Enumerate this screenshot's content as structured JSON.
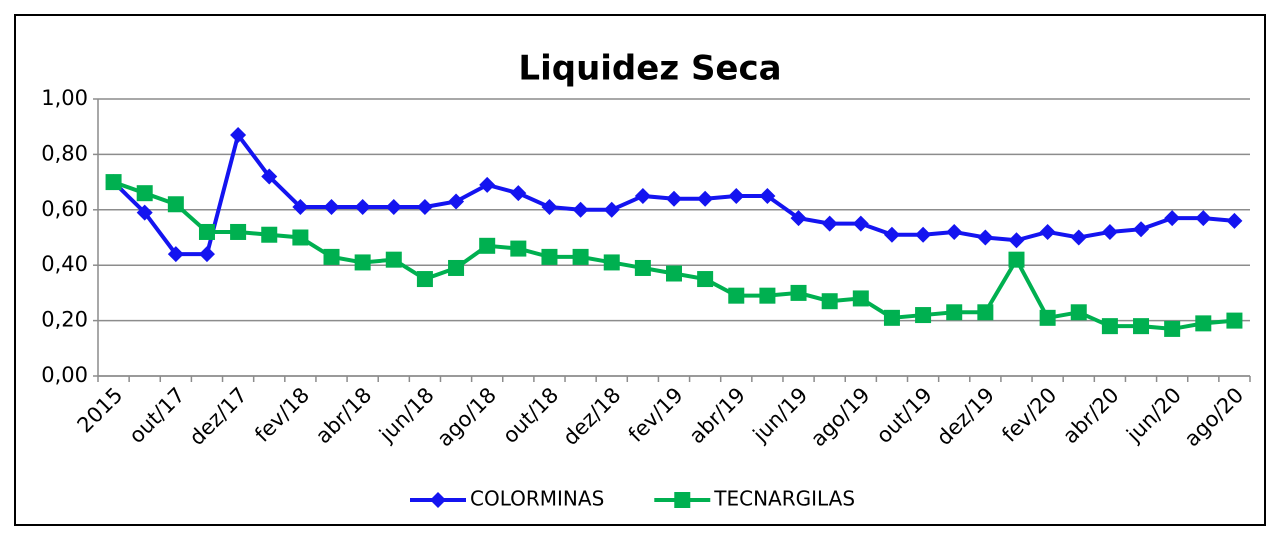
{
  "chart_data": {
    "type": "line",
    "title": "Liquidez Seca",
    "categories": [
      "2015",
      null,
      "out/17",
      null,
      "dez/17",
      null,
      "fev/18",
      null,
      "abr/18",
      null,
      "jun/18",
      null,
      "ago/18",
      null,
      "out/18",
      null,
      "dez/18",
      null,
      "fev/19",
      null,
      "abr/19",
      null,
      "jun/19",
      null,
      "ago/19",
      null,
      "out/19",
      null,
      "dez/19",
      null,
      "fev/20",
      null,
      "abr/20",
      null,
      "jun/20",
      null,
      "ago/20"
    ],
    "series": [
      {
        "name": "COLORMINAS",
        "color": "#1414f0",
        "marker": "diamond",
        "values": [
          0.7,
          0.59,
          0.44,
          0.44,
          0.87,
          0.72,
          0.61,
          0.61,
          0.61,
          0.61,
          0.61,
          0.63,
          0.69,
          0.66,
          0.61,
          0.6,
          0.6,
          0.65,
          0.64,
          0.64,
          0.65,
          0.65,
          0.57,
          0.55,
          0.55,
          0.51,
          0.51,
          0.52,
          0.5,
          0.49,
          0.52,
          0.5,
          0.52,
          0.53,
          0.57,
          0.57,
          0.56
        ]
      },
      {
        "name": "TECNARGILAS",
        "color": "#00b050",
        "marker": "square",
        "values": [
          0.7,
          0.66,
          0.62,
          0.52,
          0.52,
          0.51,
          0.5,
          0.43,
          0.41,
          0.42,
          0.35,
          0.39,
          0.47,
          0.46,
          0.43,
          0.43,
          0.41,
          0.39,
          0.37,
          0.35,
          0.29,
          0.29,
          0.3,
          0.27,
          0.28,
          0.21,
          0.22,
          0.23,
          0.23,
          0.42,
          0.21,
          0.23,
          0.18,
          0.18,
          0.17,
          0.19,
          0.2
        ]
      }
    ],
    "ylim": [
      0,
      1
    ],
    "yticks": [
      {
        "value": 0,
        "label": "0,00"
      },
      {
        "value": 0.2,
        "label": "0,20"
      },
      {
        "value": 0.4,
        "label": "0,40"
      },
      {
        "value": 0.6,
        "label": "0,60"
      },
      {
        "value": 0.8,
        "label": "0,80"
      },
      {
        "value": 1,
        "label": "1,00"
      }
    ],
    "grid": true,
    "legend": "bottom"
  }
}
